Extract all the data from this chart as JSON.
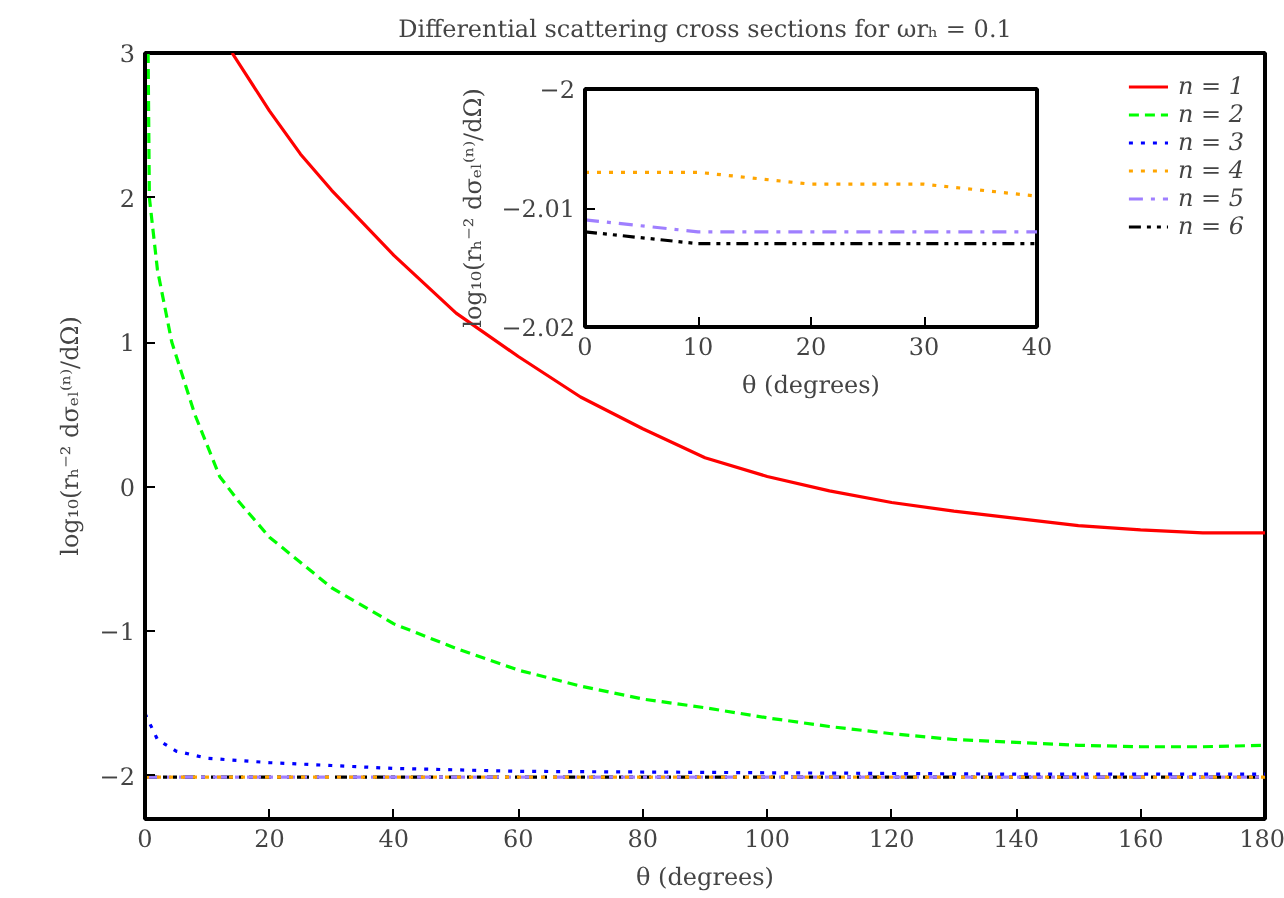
{
  "chart_data": [
    {
      "type": "line",
      "title": "Differential scattering cross sections for ωrₕ = 0.1",
      "xlabel": "θ (degrees)",
      "ylabel": "log₁₀(rₕ⁻² dσₑₗ⁽ⁿ⁾/dΩ)",
      "xlim": [
        0,
        180
      ],
      "xticks": [
        0,
        20,
        40,
        60,
        80,
        100,
        120,
        140,
        160,
        180
      ],
      "ylim": [
        -2.3,
        3
      ],
      "yticks": [
        -2,
        -1,
        0,
        1,
        2,
        3
      ],
      "grid": false,
      "legend": "top right",
      "series": [
        {
          "name": "n = 1",
          "color": "#ff0000",
          "line_style": "solid",
          "x": [
            14,
            20,
            25,
            30,
            40,
            50,
            60,
            70,
            80,
            90,
            100,
            110,
            120,
            130,
            140,
            150,
            160,
            170,
            180
          ],
          "values": [
            3.0,
            2.6,
            2.3,
            2.05,
            1.6,
            1.2,
            0.9,
            0.62,
            0.4,
            0.2,
            0.07,
            -0.03,
            -0.11,
            -0.17,
            -0.22,
            -0.27,
            -0.3,
            -0.32,
            -0.32
          ]
        },
        {
          "name": "n = 2",
          "color": "#00ff00",
          "line_style": "dashed",
          "x": [
            0.5,
            0.7,
            2,
            4.3,
            8,
            12,
            15,
            20,
            30,
            40,
            50,
            60,
            70,
            80,
            90,
            100,
            110,
            120,
            130,
            140,
            150,
            160,
            170,
            180
          ],
          "values": [
            3.0,
            2.0,
            1.5,
            1.0,
            0.5,
            0.07,
            -0.1,
            -0.35,
            -0.7,
            -0.95,
            -1.12,
            -1.27,
            -1.38,
            -1.47,
            -1.53,
            -1.6,
            -1.66,
            -1.71,
            -1.75,
            -1.77,
            -1.79,
            -1.8,
            -1.8,
            -1.79
          ]
        },
        {
          "name": "n = 3",
          "color": "#0000ff",
          "line_style": "dotted",
          "x": [
            0,
            2,
            5,
            10,
            20,
            30,
            40,
            60,
            100,
            140,
            180
          ],
          "values": [
            -1.57,
            -1.75,
            -1.83,
            -1.88,
            -1.91,
            -1.93,
            -1.95,
            -1.97,
            -1.98,
            -1.99,
            -1.99
          ]
        },
        {
          "name": "n = 4",
          "color": "#ffa500",
          "line_style": "dotted",
          "x": [
            0,
            180
          ],
          "values": [
            -2.01,
            -2.01
          ]
        },
        {
          "name": "n = 5",
          "color": "#9f7fff",
          "line_style": "dashdot",
          "x": [
            0,
            180
          ],
          "values": [
            -2.01,
            -2.01
          ]
        },
        {
          "name": "n = 6",
          "color": "#000000",
          "line_style": "dashdotdot",
          "x": [
            0,
            180
          ],
          "values": [
            -2.01,
            -2.01
          ]
        }
      ]
    },
    {
      "type": "line",
      "xlabel": "θ (degrees)",
      "ylabel": "log₁₀(rₕ⁻² dσₑₗ⁽ⁿ⁾/dΩ)",
      "xlim": [
        0,
        40
      ],
      "xticks": [
        0,
        10,
        20,
        30,
        40
      ],
      "ylim": [
        -2.02,
        -2
      ],
      "yticks": [
        -2.02,
        -2.01,
        -2
      ],
      "grid": false,
      "series": [
        {
          "color": "#ffa500",
          "line_style": "dotted",
          "x": [
            0,
            10,
            20,
            30,
            40
          ],
          "values": [
            -2.007,
            -2.007,
            -2.008,
            -2.008,
            -2.009
          ]
        },
        {
          "color": "#9f7fff",
          "line_style": "dashdot",
          "x": [
            0,
            10,
            20,
            30,
            40
          ],
          "values": [
            -2.011,
            -2.012,
            -2.012,
            -2.012,
            -2.012
          ]
        },
        {
          "color": "#000000",
          "line_style": "dashdotdot",
          "x": [
            0,
            10,
            20,
            30,
            40
          ],
          "values": [
            -2.012,
            -2.013,
            -2.013,
            -2.013,
            -2.013
          ]
        }
      ]
    }
  ]
}
